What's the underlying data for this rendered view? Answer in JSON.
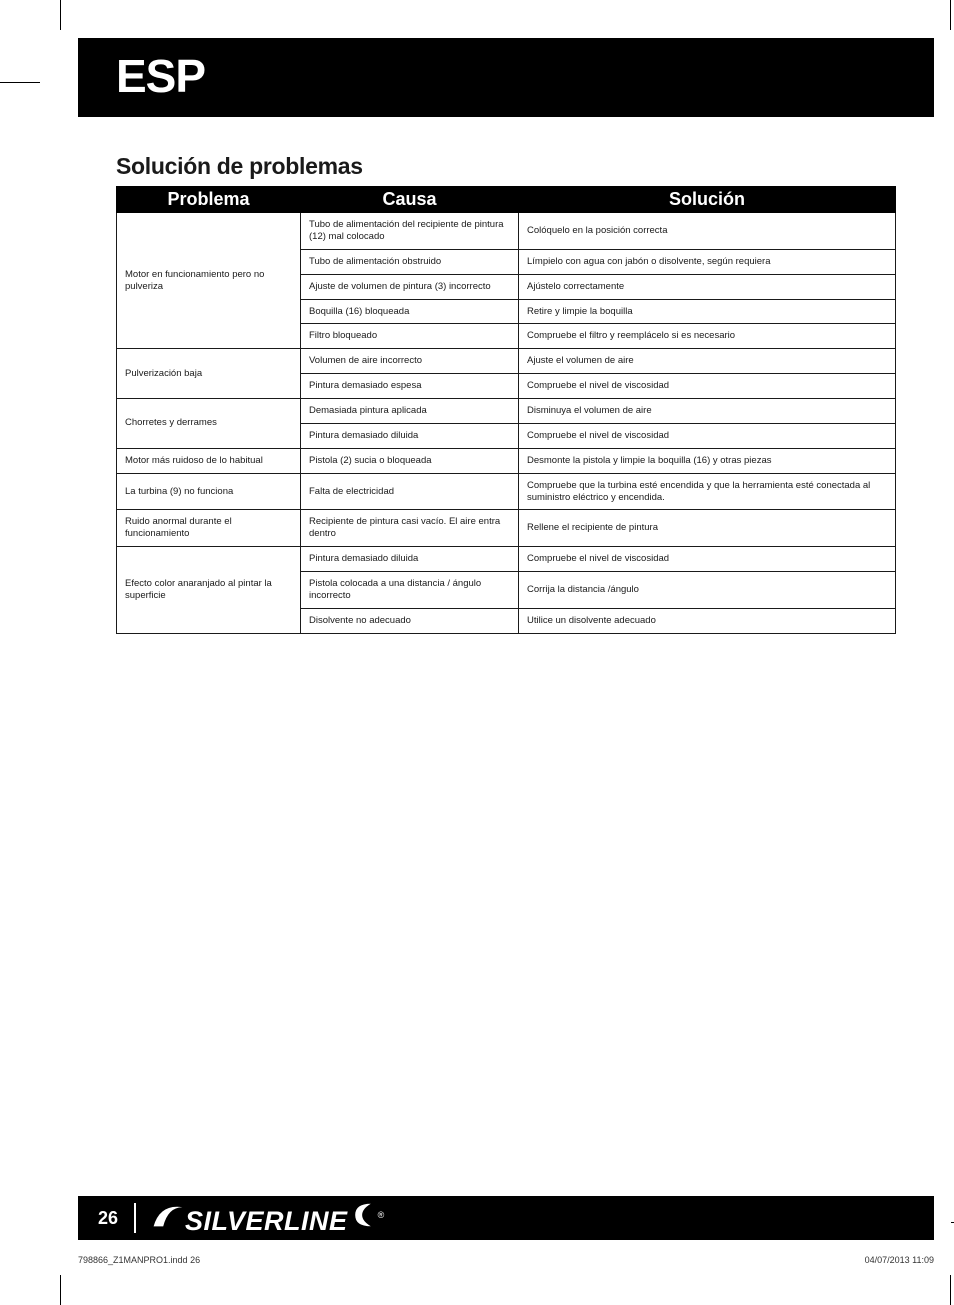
{
  "lang_code": "ESP",
  "section_title": "Solución de problemas",
  "headers": {
    "problem": "Problema",
    "cause": "Causa",
    "solution": "Solución"
  },
  "groups": [
    {
      "problem": "Motor en funcionamiento pero no pulveriza",
      "rows": [
        {
          "cause": "Tubo de alimentación del recipiente de pintura (12) mal colocado",
          "solution": "Colóquelo en la posición correcta"
        },
        {
          "cause": "Tubo de alimentación obstruido",
          "solution": "Límpielo con agua con jabón o disolvente, según requiera"
        },
        {
          "cause": "Ajuste de volumen de pintura (3) incorrecto",
          "solution": "Ajústelo correctamente"
        },
        {
          "cause": "Boquilla (16) bloqueada",
          "solution": "Retire y limpie la boquilla"
        },
        {
          "cause": "Filtro bloqueado",
          "solution": "Compruebe el filtro y reemplácelo si es necesario"
        }
      ]
    },
    {
      "problem": "Pulverización baja",
      "rows": [
        {
          "cause": "Volumen de aire incorrecto",
          "solution": "Ajuste el volumen de aire"
        },
        {
          "cause": "Pintura demasiado espesa",
          "solution": "Compruebe el nivel de viscosidad"
        }
      ]
    },
    {
      "problem": "Chorretes y derrames",
      "rows": [
        {
          "cause": "Demasiada pintura aplicada",
          "solution": "Disminuya el volumen de aire"
        },
        {
          "cause": "Pintura demasiado diluida",
          "solution": "Compruebe el nivel de viscosidad"
        }
      ]
    },
    {
      "problem": "Motor más ruidoso de lo habitual",
      "rows": [
        {
          "cause": "Pistola (2) sucia o bloqueada",
          "solution": "Desmonte la pistola y limpie la boquilla (16) y otras piezas"
        }
      ]
    },
    {
      "problem": "La turbina (9) no funciona",
      "rows": [
        {
          "cause": "Falta de electricidad",
          "solution": "Compruebe que la turbina esté encendida y que la herramienta esté conectada al suministro eléctrico y encendida."
        }
      ]
    },
    {
      "problem": "Ruido anormal durante el funcionamiento",
      "rows": [
        {
          "cause": "Recipiente de pintura casi vacío. El aire entra dentro",
          "solution": "Rellene el recipiente de pintura"
        }
      ]
    },
    {
      "problem": "Efecto color anaranjado al pintar la superficie",
      "rows": [
        {
          "cause": "Pintura demasiado diluida",
          "solution": "Compruebe el nivel de viscosidad"
        },
        {
          "cause": "Pistola colocada a una distancia / ángulo incorrecto",
          "solution": "Corrija la distancia /ángulo"
        },
        {
          "cause": "Disolvente no adecuado",
          "solution": "Utilice un disolvente adecuado"
        }
      ]
    }
  ],
  "page_number": "26",
  "logo_text": "SILVERLINE",
  "slug_file": "798866_Z1MANPRO1.indd   26",
  "slug_date": "04/07/2013   11:09"
}
